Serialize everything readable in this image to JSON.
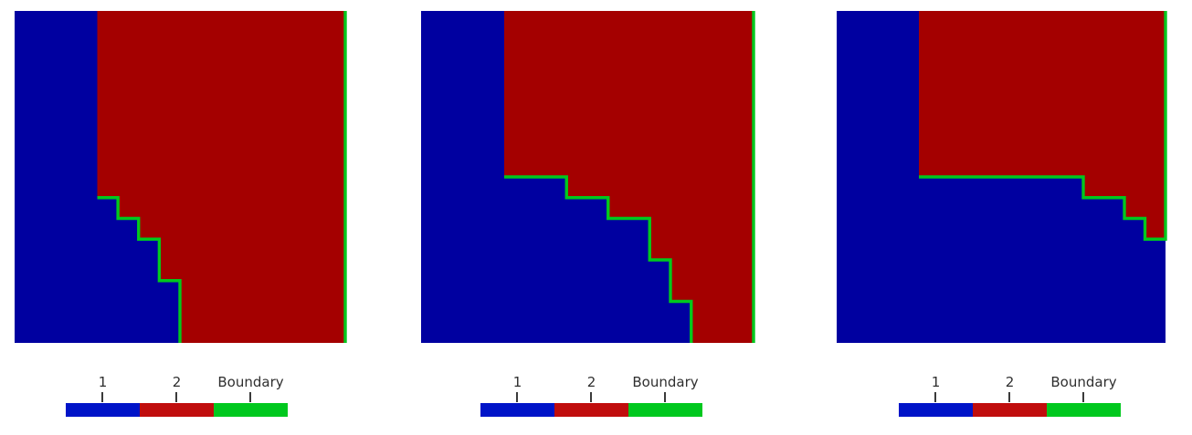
{
  "figure": {
    "background": "#ffffff",
    "text_color": "#2f2f2f",
    "panel_count": 3
  },
  "chart_data": [
    {
      "type": "heatmap",
      "panel": 1,
      "grid_size": [
        16,
        16
      ],
      "region_colors": {
        "1": "#0000A0",
        "2": "#A40000",
        "Boundary": "#00C81E"
      },
      "region1_area": "lower-left (blue)",
      "region2_area": "upper-right (red)",
      "region2_polygon": [
        [
          4,
          0
        ],
        [
          4,
          9
        ],
        [
          5,
          9
        ],
        [
          5,
          10
        ],
        [
          6,
          10
        ],
        [
          6,
          11
        ],
        [
          7,
          11
        ],
        [
          7,
          13
        ],
        [
          8,
          13
        ],
        [
          8,
          16
        ],
        [
          16,
          16
        ],
        [
          16,
          0
        ]
      ],
      "boundary_polylines": [
        [
          [
            4,
            9
          ],
          [
            5,
            9
          ],
          [
            5,
            10
          ],
          [
            6,
            10
          ],
          [
            6,
            11
          ],
          [
            7,
            11
          ],
          [
            7,
            13
          ],
          [
            8,
            13
          ],
          [
            8,
            16
          ]
        ],
        [
          [
            16,
            0
          ],
          [
            16,
            16
          ]
        ]
      ],
      "legend_entries": [
        {
          "label": "1",
          "color": "#0014C8"
        },
        {
          "label": "2",
          "color": "#C00D0D"
        },
        {
          "label": "Boundary",
          "color": "#00C81E"
        }
      ]
    },
    {
      "type": "heatmap",
      "panel": 2,
      "grid_size": [
        16,
        16
      ],
      "region_colors": {
        "1": "#0000A0",
        "2": "#A40000",
        "Boundary": "#00C81E"
      },
      "region1_area": "lower-left (blue)",
      "region2_area": "upper-right (red)",
      "region2_polygon": [
        [
          4,
          0
        ],
        [
          4,
          8
        ],
        [
          7,
          8
        ],
        [
          7,
          9
        ],
        [
          9,
          9
        ],
        [
          9,
          10
        ],
        [
          11,
          10
        ],
        [
          11,
          12
        ],
        [
          12,
          12
        ],
        [
          12,
          14
        ],
        [
          13,
          14
        ],
        [
          13,
          16
        ],
        [
          16,
          16
        ],
        [
          16,
          0
        ]
      ],
      "boundary_polylines": [
        [
          [
            4,
            8
          ],
          [
            7,
            8
          ],
          [
            7,
            9
          ],
          [
            9,
            9
          ],
          [
            9,
            10
          ],
          [
            11,
            10
          ],
          [
            11,
            12
          ],
          [
            12,
            12
          ],
          [
            12,
            14
          ],
          [
            13,
            14
          ],
          [
            13,
            16
          ]
        ],
        [
          [
            16,
            0
          ],
          [
            16,
            16
          ]
        ]
      ],
      "legend_entries": [
        {
          "label": "1",
          "color": "#0014C8"
        },
        {
          "label": "2",
          "color": "#C00D0D"
        },
        {
          "label": "Boundary",
          "color": "#00C81E"
        }
      ]
    },
    {
      "type": "heatmap",
      "panel": 3,
      "grid_size": [
        16,
        16
      ],
      "region_colors": {
        "1": "#0000A0",
        "2": "#A40000",
        "Boundary": "#00C81E"
      },
      "region1_area": "lower-left (blue)",
      "region2_area": "upper-right (red)",
      "region2_polygon": [
        [
          4,
          0
        ],
        [
          4,
          8
        ],
        [
          12,
          8
        ],
        [
          12,
          9
        ],
        [
          14,
          9
        ],
        [
          14,
          10
        ],
        [
          15,
          10
        ],
        [
          15,
          11
        ],
        [
          16,
          11
        ],
        [
          16,
          0
        ]
      ],
      "boundary_polylines": [
        [
          [
            4,
            8
          ],
          [
            12,
            8
          ],
          [
            12,
            9
          ],
          [
            14,
            9
          ],
          [
            14,
            10
          ],
          [
            15,
            10
          ],
          [
            15,
            11
          ],
          [
            16,
            11
          ],
          [
            16,
            0
          ]
        ]
      ],
      "legend_entries": [
        {
          "label": "1",
          "color": "#0014C8"
        },
        {
          "label": "2",
          "color": "#C00D0D"
        },
        {
          "label": "Boundary",
          "color": "#00C81E"
        }
      ]
    }
  ]
}
